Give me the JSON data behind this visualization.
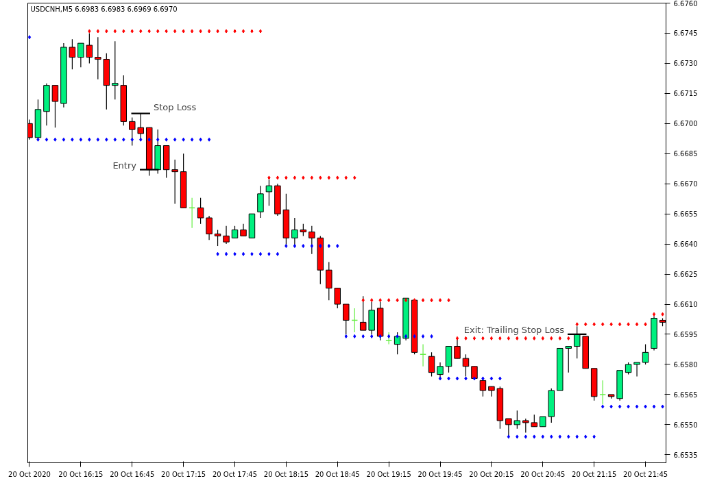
{
  "chart_data": {
    "type": "candlestick",
    "title": "USDCNH,M5  6.6983 6.6983 6.6969 6.6970",
    "x": [
      "2020-10-20T15:45",
      "2020-10-20T15:50",
      "2020-10-20T15:55",
      "2020-10-20T16:00",
      "2020-10-20T16:05",
      "2020-10-20T16:10",
      "2020-10-20T16:15",
      "2020-10-20T16:20",
      "2020-10-20T16:25",
      "2020-10-20T16:30",
      "2020-10-20T16:35",
      "2020-10-20T16:40",
      "2020-10-20T16:45",
      "2020-10-20T16:50",
      "2020-10-20T16:55",
      "2020-10-20T17:00",
      "2020-10-20T17:05",
      "2020-10-20T17:10",
      "2020-10-20T17:15",
      "2020-10-20T17:20",
      "2020-10-20T17:25",
      "2020-10-20T17:30",
      "2020-10-20T17:35",
      "2020-10-20T17:40",
      "2020-10-20T17:45",
      "2020-10-20T17:50",
      "2020-10-20T17:55",
      "2020-10-20T18:00",
      "2020-10-20T18:05",
      "2020-10-20T18:10",
      "2020-10-20T18:15",
      "2020-10-20T18:20",
      "2020-10-20T18:25",
      "2020-10-20T18:30",
      "2020-10-20T18:35",
      "2020-10-20T18:40",
      "2020-10-20T18:45",
      "2020-10-20T18:50",
      "2020-10-20T18:55",
      "2020-10-20T19:00",
      "2020-10-20T19:05",
      "2020-10-20T19:10",
      "2020-10-20T19:15",
      "2020-10-20T19:20",
      "2020-10-20T19:25",
      "2020-10-20T19:30",
      "2020-10-20T19:35",
      "2020-10-20T19:40",
      "2020-10-20T19:45",
      "2020-10-20T19:50",
      "2020-10-20T19:55",
      "2020-10-20T20:00",
      "2020-10-20T20:05",
      "2020-10-20T20:10",
      "2020-10-20T20:15",
      "2020-10-20T20:20",
      "2020-10-20T20:25",
      "2020-10-20T20:30",
      "2020-10-20T20:35",
      "2020-10-20T20:40",
      "2020-10-20T20:45",
      "2020-10-20T20:50",
      "2020-10-20T20:55",
      "2020-10-20T21:00",
      "2020-10-20T21:05",
      "2020-10-20T21:10",
      "2020-10-20T21:15",
      "2020-10-20T21:20",
      "2020-10-20T21:25",
      "2020-10-20T21:30",
      "2020-10-20T21:35",
      "2020-10-20T21:40",
      "2020-10-20T21:45",
      "2020-10-20T21:50",
      "2020-10-20T21:55"
    ],
    "ohlc": [
      [
        6.67,
        6.6702,
        6.6692,
        6.6693
      ],
      [
        6.6693,
        6.6712,
        6.6693,
        6.6707
      ],
      [
        6.6706,
        6.672,
        6.6699,
        6.6719
      ],
      [
        6.6719,
        6.6719,
        6.6698,
        6.6711
      ],
      [
        6.671,
        6.674,
        6.6708,
        6.6738
      ],
      [
        6.6738,
        6.6742,
        6.6727,
        6.6733
      ],
      [
        6.6733,
        6.674,
        6.6728,
        6.674
      ],
      [
        6.6739,
        6.6745,
        6.673,
        6.6733
      ],
      [
        6.6733,
        6.6743,
        6.6722,
        6.6732
      ],
      [
        6.6732,
        6.6735,
        6.6707,
        6.6719
      ],
      [
        6.6719,
        6.6741,
        6.6712,
        6.672
      ],
      [
        6.6719,
        6.6724,
        6.6699,
        6.6701
      ],
      [
        6.6701,
        6.6703,
        6.6689,
        6.6697
      ],
      [
        6.6698,
        6.6705,
        6.6692,
        6.6695
      ],
      [
        6.6698,
        6.6698,
        6.6674,
        6.6677
      ],
      [
        6.6677,
        6.6697,
        6.6675,
        6.6689
      ],
      [
        6.6689,
        6.6689,
        6.6673,
        6.6677
      ],
      [
        6.6677,
        6.6682,
        6.666,
        6.6676
      ],
      [
        6.6676,
        6.6685,
        6.6658,
        6.6658
      ],
      [
        6.6658,
        6.6663,
        6.6648,
        6.6658
      ],
      [
        6.6658,
        6.6663,
        6.665,
        6.6653
      ],
      [
        6.6653,
        6.6654,
        6.6642,
        6.6645
      ],
      [
        6.6645,
        6.6647,
        6.6639,
        6.6644
      ],
      [
        6.6644,
        6.6649,
        6.664,
        6.6641
      ],
      [
        6.6643,
        6.6649,
        6.6643,
        6.6647
      ],
      [
        6.6647,
        6.665,
        6.6644,
        6.6644
      ],
      [
        6.6643,
        6.6655,
        6.6643,
        6.6655
      ],
      [
        6.6656,
        6.6669,
        6.6653,
        6.6665
      ],
      [
        6.6666,
        6.6672,
        6.6659,
        6.6669
      ],
      [
        6.6669,
        6.667,
        6.6654,
        6.6655
      ],
      [
        6.6657,
        6.6665,
        6.6639,
        6.6643
      ],
      [
        6.6643,
        6.6653,
        6.6639,
        6.6647
      ],
      [
        6.6647,
        6.665,
        6.6644,
        6.6646
      ],
      [
        6.6646,
        6.6649,
        6.6635,
        6.6643
      ],
      [
        6.6643,
        6.6644,
        6.662,
        6.6627
      ],
      [
        6.6627,
        6.6631,
        6.6612,
        6.6618
      ],
      [
        6.6618,
        6.6618,
        6.6608,
        6.661
      ],
      [
        6.661,
        6.661,
        6.6595,
        6.6602
      ],
      [
        6.6602,
        6.6608,
        6.6596,
        6.6602
      ],
      [
        6.6601,
        6.6614,
        6.6597,
        6.6597
      ],
      [
        6.6597,
        6.6611,
        6.6595,
        6.6607
      ],
      [
        6.6608,
        6.6611,
        6.6592,
        6.6594
      ],
      [
        6.6592,
        6.6596,
        6.659,
        6.6592
      ],
      [
        6.659,
        6.6596,
        6.6585,
        6.6594
      ],
      [
        6.6593,
        6.6613,
        6.6592,
        6.6613
      ],
      [
        6.6612,
        6.6612,
        6.6585,
        6.6586
      ],
      [
        6.6585,
        6.659,
        6.6579,
        6.6585
      ],
      [
        6.6584,
        6.6586,
        6.6574,
        6.6576
      ],
      [
        6.6575,
        6.6581,
        6.6573,
        6.6579
      ],
      [
        6.6579,
        6.6589,
        6.6576,
        6.6589
      ],
      [
        6.6589,
        6.6593,
        6.6583,
        6.6583
      ],
      [
        6.6583,
        6.6585,
        6.6574,
        6.6579
      ],
      [
        6.6579,
        6.6579,
        6.6573,
        6.6573
      ],
      [
        6.6572,
        6.6573,
        6.6564,
        6.6567
      ],
      [
        6.6569,
        6.6569,
        6.6564,
        6.6567
      ],
      [
        6.6568,
        6.6569,
        6.6548,
        6.6552
      ],
      [
        6.6553,
        6.6553,
        6.6544,
        6.655
      ],
      [
        6.655,
        6.6557,
        6.6548,
        6.6552
      ],
      [
        6.6552,
        6.6553,
        6.6546,
        6.6551
      ],
      [
        6.6551,
        6.6555,
        6.6549,
        6.6549
      ],
      [
        6.6549,
        6.6554,
        6.6549,
        6.6554
      ],
      [
        6.6554,
        6.6568,
        6.6551,
        6.6567
      ],
      [
        6.6567,
        6.6588,
        6.6567,
        6.6588
      ],
      [
        6.6588,
        6.6589,
        6.6576,
        6.6589
      ],
      [
        6.6589,
        6.6599,
        6.6583,
        6.6595
      ],
      [
        6.6594,
        6.6594,
        6.6578,
        6.6578
      ],
      [
        6.6578,
        6.6578,
        6.6562,
        6.6564
      ],
      [
        6.6565,
        6.6572,
        6.656,
        6.6565
      ],
      [
        6.6565,
        6.6565,
        6.6563,
        6.6564
      ],
      [
        6.6563,
        6.6577,
        6.6562,
        6.6577
      ],
      [
        6.6576,
        6.6581,
        6.6575,
        6.658
      ],
      [
        6.658,
        6.6581,
        6.6574,
        6.6581
      ],
      [
        6.6581,
        6.659,
        6.658,
        6.6586
      ],
      [
        6.6588,
        6.6604,
        6.6587,
        6.6603
      ],
      [
        6.6602,
        6.6603,
        6.6599,
        6.6601
      ]
    ],
    "colors": [
      "#ff0000",
      "#00f07f",
      "#00f07f",
      "#ff0000",
      "#00f07f",
      "#ff0000",
      "#00f07f",
      "#ff0000",
      "#ff0000",
      "#ff0000",
      "#00f07f",
      "#ff0000",
      "#ff0000",
      "#ff0000",
      "#ff0000",
      "#00f07f",
      "#ff0000",
      "#ff0000",
      "#ff0000",
      "#66ee44",
      "#ff0000",
      "#ff0000",
      "#ff0000",
      "#ff0000",
      "#00f07f",
      "#ff0000",
      "#00f07f",
      "#00f07f",
      "#00f07f",
      "#ff0000",
      "#ff0000",
      "#00f07f",
      "#ff0000",
      "#ff0000",
      "#ff0000",
      "#ff0000",
      "#ff0000",
      "#ff0000",
      "#66ee44",
      "#ff0000",
      "#00f07f",
      "#ff0000",
      "#66ee44",
      "#00f07f",
      "#00f07f",
      "#ff0000",
      "#66ee44",
      "#ff0000",
      "#00f07f",
      "#00f07f",
      "#ff0000",
      "#ff0000",
      "#ff0000",
      "#ff0000",
      "#ff0000",
      "#ff0000",
      "#ff0000",
      "#00f07f",
      "#ff0000",
      "#ff0000",
      "#00f07f",
      "#00f07f",
      "#00f07f",
      "#00f07f",
      "#00f07f",
      "#ff0000",
      "#ff0000",
      "#66ee44",
      "#ff0000",
      "#00f07f",
      "#00f07f",
      "#00f07f",
      "#00f07f",
      "#00f07f",
      "#ff0000"
    ],
    "series": [
      {
        "type": "scatter",
        "color": "#ff0000",
        "marker": "diamond",
        "values": [
          null,
          null,
          null,
          null,
          null,
          null,
          null,
          6.6746,
          6.6746,
          6.6746,
          6.6746,
          6.6746,
          6.6746,
          6.6746,
          6.6746,
          6.6746,
          6.6746,
          6.6746,
          6.6746,
          6.6746,
          6.6746,
          6.6746,
          6.6746,
          6.6746,
          6.6746,
          6.6746,
          6.6746,
          6.6746,
          6.6673,
          6.6673,
          6.6673,
          6.6673,
          6.6673,
          6.6673,
          6.6673,
          6.6673,
          6.6673,
          6.6673,
          6.6673,
          6.6612,
          6.6612,
          6.6612,
          6.6612,
          6.6612,
          6.6612,
          6.6612,
          6.6612,
          6.6612,
          6.6612,
          6.6612,
          6.6593,
          6.6593,
          6.6593,
          6.6593,
          6.6593,
          6.6593,
          6.6593,
          6.6593,
          6.6593,
          6.6593,
          6.6593,
          6.6593,
          6.6593,
          6.6593,
          6.66,
          6.66,
          6.66,
          6.66,
          6.66,
          6.66,
          6.66,
          6.66,
          6.66,
          6.6605,
          6.6605
        ]
      },
      {
        "type": "scatter",
        "color": "#0000ff",
        "marker": "diamond",
        "values": [
          6.6743,
          6.6692,
          6.6692,
          6.6692,
          6.6692,
          6.6692,
          6.6692,
          6.6692,
          6.6692,
          6.6692,
          6.6692,
          6.6692,
          6.6692,
          6.6692,
          6.6692,
          6.6692,
          6.6692,
          6.6692,
          6.6692,
          6.6692,
          6.6692,
          6.6692,
          6.6635,
          6.6635,
          6.6635,
          6.6635,
          6.6635,
          6.6635,
          6.6635,
          6.6635,
          6.6639,
          6.6639,
          6.6639,
          6.6639,
          6.6639,
          6.6639,
          6.6639,
          6.6594,
          6.6594,
          6.6594,
          6.6594,
          6.6594,
          6.6594,
          6.6594,
          6.6594,
          6.6594,
          6.6594,
          6.6594,
          6.6573,
          6.6573,
          6.6573,
          6.6573,
          6.6573,
          6.6573,
          6.6573,
          6.6573,
          6.6544,
          6.6544,
          6.6544,
          6.6544,
          6.6544,
          6.6544,
          6.6544,
          6.6544,
          6.6544,
          6.6544,
          6.6544,
          6.6559,
          6.6559,
          6.6559,
          6.6559,
          6.6559,
          6.6559,
          6.6559,
          6.6559
        ]
      }
    ],
    "annotations": [
      {
        "text": "Stop Loss",
        "x": "2020-10-20T16:50",
        "y": 6.6705
      },
      {
        "text": "Entry",
        "x": "2020-10-20T16:55",
        "y": 6.6677
      },
      {
        "text": "Exit: Trailing Stop Loss",
        "x": "2020-10-20T21:05",
        "y": 6.6595
      }
    ],
    "xlim": [
      "2020-10-20T15:44",
      "2020-10-20T21:57"
    ],
    "xticks": [
      {
        "value": "2020-10-20T15:45",
        "label": "20 Oct 2020"
      },
      {
        "value": "2020-10-20T16:15",
        "label": "20 Oct 16:15"
      },
      {
        "value": "2020-10-20T16:45",
        "label": "20 Oct 16:45"
      },
      {
        "value": "2020-10-20T17:15",
        "label": "20 Oct 17:15"
      },
      {
        "value": "2020-10-20T17:45",
        "label": "20 Oct 17:45"
      },
      {
        "value": "2020-10-20T18:15",
        "label": "20 Oct 18:15"
      },
      {
        "value": "2020-10-20T18:45",
        "label": "20 Oct 18:45"
      },
      {
        "value": "2020-10-20T19:15",
        "label": "20 Oct 19:15"
      },
      {
        "value": "2020-10-20T19:45",
        "label": "20 Oct 19:45"
      },
      {
        "value": "2020-10-20T20:15",
        "label": "20 Oct 20:15"
      },
      {
        "value": "2020-10-20T20:45",
        "label": "20 Oct 20:45"
      },
      {
        "value": "2020-10-20T21:15",
        "label": "20 Oct 21:15"
      },
      {
        "value": "2020-10-20T21:45",
        "label": "20 Oct 21:45"
      }
    ],
    "ylim": [
      6.6531,
      6.676
    ],
    "yticks": [
      6.6535,
      {
        "value": 6.655,
        "label": "6.6550"
      },
      6.6565,
      {
        "value": 6.658,
        "label": "6.6580"
      },
      6.6595,
      {
        "value": 6.661,
        "label": "6.6610"
      },
      6.6625,
      {
        "value": 6.664,
        "label": "6.6640"
      },
      6.6655,
      {
        "value": 6.667,
        "label": "6.6670"
      },
      6.6685,
      {
        "value": 6.67,
        "label": "6.6700"
      },
      6.6715,
      {
        "value": 6.673,
        "label": "6.6730"
      },
      6.6745,
      {
        "value": 6.676,
        "label": "6.6760"
      }
    ],
    "grid": false
  }
}
